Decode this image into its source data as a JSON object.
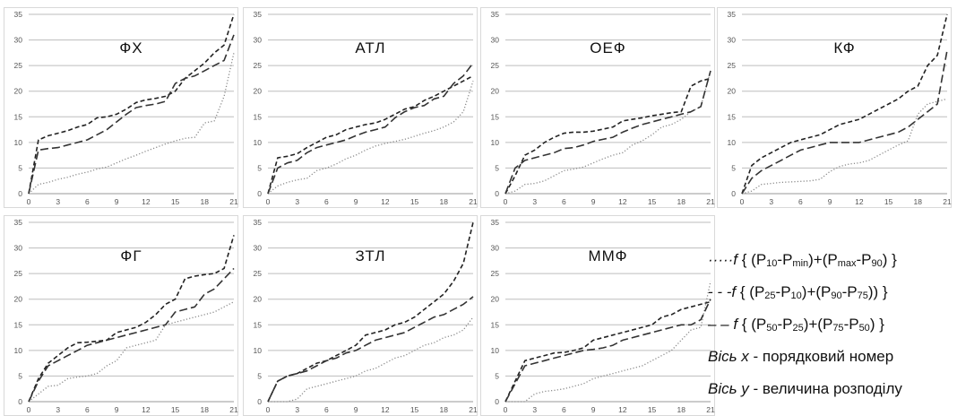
{
  "chart_data": [
    {
      "type": "line",
      "title": "ФХ",
      "x": [
        0,
        1,
        2,
        3,
        4,
        5,
        6,
        7,
        8,
        9,
        10,
        11,
        12,
        13,
        14,
        15,
        16,
        17,
        18,
        19,
        20,
        21
      ],
      "ylim": [
        0,
        35
      ],
      "xticks": [
        0,
        3,
        6,
        9,
        12,
        15,
        18,
        21
      ],
      "yticks": [
        0,
        5,
        10,
        15,
        20,
        25,
        30,
        35
      ],
      "grid": "horizontal",
      "series": [
        {
          "style": "dotted",
          "values": [
            0,
            1.8,
            2.2,
            2.8,
            3.2,
            3.8,
            4.2,
            4.8,
            5.2,
            6,
            6.8,
            7.5,
            8.3,
            9,
            9.7,
            10.3,
            10.8,
            11,
            13.8,
            14.2,
            19,
            27.5
          ]
        },
        {
          "style": "short-dashed",
          "values": [
            0,
            10.5,
            11.3,
            11.8,
            12.3,
            13,
            13.5,
            14.8,
            15,
            15.5,
            16.5,
            17.8,
            18.3,
            18.6,
            19,
            20,
            22.5,
            24,
            25.5,
            27.5,
            29,
            35
          ]
        },
        {
          "style": "long-dashed",
          "values": [
            0,
            8.5,
            8.8,
            9,
            9.5,
            10,
            10.5,
            11.5,
            12.5,
            14,
            15.5,
            16.8,
            17.2,
            17.5,
            18,
            21.5,
            22.5,
            23,
            24,
            25,
            26,
            31
          ]
        }
      ]
    },
    {
      "type": "line",
      "title": "АТЛ",
      "x": [
        0,
        1,
        2,
        3,
        4,
        5,
        6,
        7,
        8,
        9,
        10,
        11,
        12,
        13,
        14,
        15,
        16,
        17,
        18,
        19,
        20,
        21
      ],
      "ylim": [
        0,
        35
      ],
      "xticks": [
        0,
        3,
        6,
        9,
        12,
        15,
        18,
        21
      ],
      "yticks": [
        0,
        5,
        10,
        15,
        20,
        25,
        30,
        35
      ],
      "grid": "horizontal",
      "series": [
        {
          "style": "dotted",
          "values": [
            0,
            1.5,
            2.2,
            2.7,
            3,
            4.5,
            5,
            5.8,
            6.8,
            7.5,
            8.5,
            9.3,
            9.8,
            10.2,
            10.6,
            11.2,
            11.8,
            12.3,
            13,
            14,
            16,
            22
          ]
        },
        {
          "style": "short-dashed",
          "values": [
            0,
            7,
            7.3,
            7.8,
            9,
            10,
            11,
            11.5,
            12.5,
            13,
            13.5,
            13.8,
            14.5,
            15.5,
            16.5,
            17,
            18.2,
            19,
            20,
            21,
            22,
            23
          ]
        },
        {
          "style": "long-dashed",
          "values": [
            0,
            5,
            6,
            6.5,
            8,
            9,
            9.5,
            10,
            10.5,
            11.3,
            12,
            12.5,
            13,
            14.8,
            16,
            16.8,
            17.2,
            18.5,
            19,
            21.5,
            23,
            25.5
          ]
        }
      ]
    },
    {
      "type": "line",
      "title": "ОЕФ",
      "x": [
        0,
        1,
        2,
        3,
        4,
        5,
        6,
        7,
        8,
        9,
        10,
        11,
        12,
        13,
        14,
        15,
        16,
        17,
        18,
        19,
        20,
        21
      ],
      "ylim": [
        0,
        35
      ],
      "xticks": [
        0,
        3,
        6,
        9,
        12,
        15,
        18,
        21
      ],
      "yticks": [
        0,
        5,
        10,
        15,
        20,
        25,
        30,
        35
      ],
      "grid": "horizontal",
      "series": [
        {
          "style": "dotted",
          "values": [
            0,
            0.5,
            1.8,
            2,
            2.5,
            3.5,
            4.5,
            4.8,
            5.2,
            6,
            6.8,
            7.5,
            8,
            9.5,
            10.3,
            11.5,
            13,
            13.5,
            14.5,
            16,
            17,
            24
          ]
        },
        {
          "style": "short-dashed",
          "values": [
            0,
            3.5,
            7.5,
            8.5,
            10,
            11,
            11.8,
            12,
            12,
            12.2,
            12.6,
            13,
            14.2,
            14.5,
            14.8,
            15.2,
            15.5,
            15.8,
            16,
            21,
            22,
            22.5
          ]
        },
        {
          "style": "long-dashed",
          "values": [
            0,
            5,
            6.5,
            7,
            7.5,
            8,
            8.8,
            9,
            9.5,
            10.2,
            10.6,
            11,
            12,
            12.8,
            13.5,
            14,
            14.5,
            15,
            15.5,
            16,
            17,
            24
          ]
        }
      ]
    },
    {
      "type": "line",
      "title": "КФ",
      "x": [
        0,
        1,
        2,
        3,
        4,
        5,
        6,
        7,
        8,
        9,
        10,
        11,
        12,
        13,
        14,
        15,
        16,
        17,
        18,
        19,
        20,
        21
      ],
      "ylim": [
        0,
        35
      ],
      "xticks": [
        0,
        3,
        6,
        9,
        12,
        15,
        18,
        21
      ],
      "yticks": [
        0,
        5,
        10,
        15,
        20,
        25,
        30,
        35
      ],
      "grid": "horizontal",
      "series": [
        {
          "style": "dotted",
          "values": [
            0,
            0.5,
            1.8,
            2,
            2.2,
            2.3,
            2.4,
            2.5,
            2.8,
            4.3,
            5.3,
            5.8,
            6,
            6.5,
            7.5,
            8.5,
            9.5,
            10.3,
            15.5,
            17.5,
            18,
            18.5
          ]
        },
        {
          "style": "short-dashed",
          "values": [
            0,
            5.5,
            7,
            8,
            9,
            10,
            10.5,
            11,
            11.5,
            12.5,
            13.5,
            14,
            14.5,
            15.5,
            16.5,
            17.5,
            18.5,
            20,
            21,
            25,
            27,
            35
          ]
        },
        {
          "style": "long-dashed",
          "values": [
            0,
            3,
            4.5,
            5.5,
            6.5,
            7.5,
            8.5,
            9,
            9.5,
            10,
            10,
            10,
            10,
            10.5,
            11,
            11.5,
            12,
            13,
            14.5,
            16,
            17.5,
            28
          ]
        }
      ]
    },
    {
      "type": "line",
      "title": "ФГ",
      "x": [
        0,
        1,
        2,
        3,
        4,
        5,
        6,
        7,
        8,
        9,
        10,
        11,
        12,
        13,
        14,
        15,
        16,
        17,
        18,
        19,
        20,
        21
      ],
      "ylim": [
        0,
        35
      ],
      "xticks": [
        0,
        3,
        6,
        9,
        12,
        15,
        18,
        21
      ],
      "yticks": [
        0,
        5,
        10,
        15,
        20,
        25,
        30,
        35
      ],
      "grid": "horizontal",
      "series": [
        {
          "style": "dotted",
          "values": [
            0,
            1.5,
            3,
            3.2,
            4.5,
            4.8,
            5,
            5.5,
            7,
            8,
            10.5,
            11,
            11.5,
            12,
            15,
            15.5,
            16,
            16.5,
            17,
            17.5,
            18.5,
            19.5
          ]
        },
        {
          "style": "short-dashed",
          "values": [
            0,
            4.5,
            7.5,
            9,
            10.5,
            11.5,
            11.6,
            11.8,
            12,
            13.5,
            14,
            14.5,
            15.5,
            17,
            19,
            20,
            24,
            24.5,
            24.8,
            25,
            26,
            32.5
          ]
        },
        {
          "style": "long-dashed",
          "values": [
            0,
            4,
            7,
            8,
            9,
            10,
            11,
            11.5,
            12,
            12.5,
            13,
            13.5,
            14,
            14.5,
            15,
            17.5,
            18,
            18.5,
            21,
            22,
            24,
            26
          ]
        }
      ]
    },
    {
      "type": "line",
      "title": "ЗТЛ",
      "x": [
        0,
        1,
        2,
        3,
        4,
        5,
        6,
        7,
        8,
        9,
        10,
        11,
        12,
        13,
        14,
        15,
        16,
        17,
        18,
        19,
        20,
        21
      ],
      "ylim": [
        0,
        35
      ],
      "xticks": [
        0,
        3,
        6,
        9,
        12,
        15,
        18,
        21
      ],
      "yticks": [
        0,
        5,
        10,
        15,
        20,
        25,
        30,
        35
      ],
      "grid": "horizontal",
      "series": [
        {
          "style": "dotted",
          "values": [
            0,
            0,
            0,
            0.5,
            2.5,
            3,
            3.5,
            4,
            4.5,
            5,
            6,
            6.5,
            7.5,
            8.5,
            9,
            10,
            11,
            11.5,
            12.5,
            13,
            14,
            16.5
          ]
        },
        {
          "style": "short-dashed",
          "values": [
            0,
            4,
            5,
            5.5,
            6.5,
            7.5,
            8,
            9,
            10,
            11,
            13,
            13.5,
            14,
            15,
            15.5,
            16.5,
            18,
            19.5,
            21,
            23.5,
            27,
            35
          ]
        },
        {
          "style": "long-dashed",
          "values": [
            0,
            4,
            5,
            5.5,
            6,
            7,
            8,
            8.5,
            9.5,
            10,
            11,
            12,
            12.5,
            13,
            13.5,
            14.5,
            15.5,
            16.5,
            17,
            18,
            19,
            20.5
          ]
        }
      ]
    },
    {
      "type": "line",
      "title": "ММФ",
      "x": [
        0,
        1,
        2,
        3,
        4,
        5,
        6,
        7,
        8,
        9,
        10,
        11,
        12,
        13,
        14,
        15,
        16,
        17,
        18,
        19,
        20,
        21
      ],
      "ylim": [
        0,
        35
      ],
      "xticks": [
        0,
        3,
        6,
        9,
        12,
        15,
        18,
        21
      ],
      "yticks": [
        0,
        5,
        10,
        15,
        20,
        25,
        30,
        35
      ],
      "grid": "horizontal",
      "series": [
        {
          "style": "dotted",
          "values": [
            0,
            0,
            0,
            1.5,
            2,
            2.2,
            2.5,
            3,
            3.5,
            4.5,
            5,
            5.5,
            6,
            6.5,
            7,
            8,
            9,
            10,
            12,
            14,
            14.5,
            23.5
          ]
        },
        {
          "style": "short-dashed",
          "values": [
            0,
            4,
            8,
            8.5,
            9,
            9.5,
            9.6,
            10,
            10.5,
            12,
            12.5,
            13,
            13.5,
            14,
            14.5,
            15,
            16.5,
            17,
            18,
            18.5,
            19,
            19.5
          ]
        },
        {
          "style": "long-dashed",
          "values": [
            0,
            3.5,
            7,
            7.5,
            8,
            8.5,
            9,
            9.5,
            10,
            10.2,
            10.5,
            11,
            12,
            12.5,
            13,
            13.5,
            14,
            14.5,
            15,
            15,
            16,
            20
          ]
        }
      ]
    }
  ],
  "legend": {
    "items": [
      {
        "style": "dotted",
        "prefix": "·····f",
        "text": " { (P10-Pmin)+(Pmax-P90) }"
      },
      {
        "style": "short-dashed",
        "prefix": "- - -f",
        "text": " { (P25-P10)+(P90-P75)) }"
      },
      {
        "style": "long-dashed",
        "prefix": "– – f",
        "text": " { (P50-P25)+(P75-P50) }"
      }
    ],
    "axis_x": {
      "label": "Вісь x",
      "text": " - порядковий номер"
    },
    "axis_y": {
      "label": "Вісь y",
      "text": " - величина розподілу"
    }
  }
}
